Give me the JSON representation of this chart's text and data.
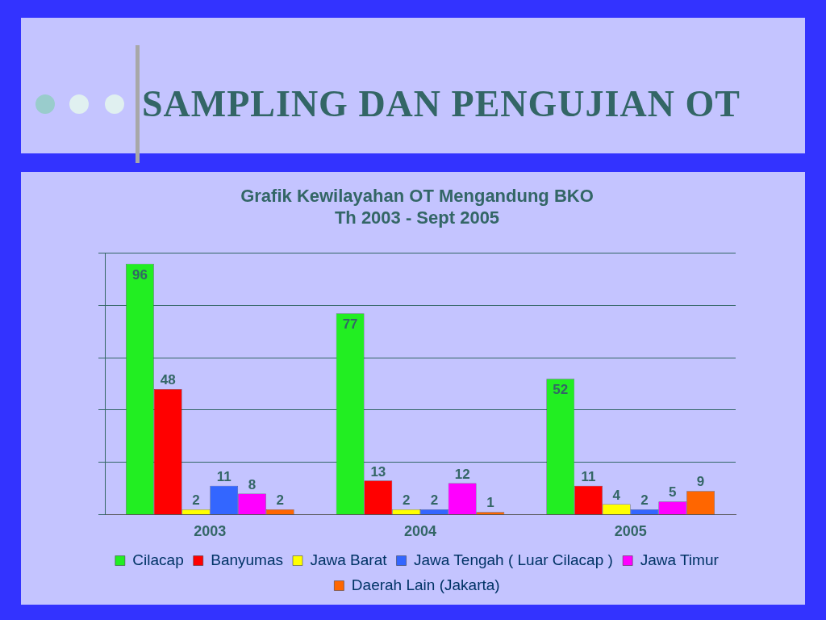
{
  "chart_data": {
    "type": "bar",
    "title": "SAMPLING DAN PENGUJIAN OT",
    "subtitle": "Grafik Kewilayahan OT Mengandung BKO\nTh 2003 - Sept 2005",
    "categories": [
      "2003",
      "2004",
      "2005"
    ],
    "series": [
      {
        "name": "Cilacap",
        "color": "#22ee22",
        "values": [
          96,
          77,
          52
        ]
      },
      {
        "name": "Banyumas",
        "color": "#ff0000",
        "values": [
          48,
          13,
          11
        ]
      },
      {
        "name": "Jawa Barat",
        "color": "#ffff00",
        "values": [
          2,
          2,
          4
        ]
      },
      {
        "name": "Jawa Tengah ( Luar Cilacap )",
        "color": "#3366ff",
        "values": [
          11,
          2,
          2
        ]
      },
      {
        "name": "Jawa Timur",
        "color": "#ff00ff",
        "values": [
          8,
          12,
          5
        ]
      },
      {
        "name": "Daerah Lain (Jakarta)",
        "color": "#ff6600",
        "values": [
          2,
          1,
          9
        ]
      }
    ],
    "ylim": [
      0,
      100
    ],
    "yticks": [
      {
        "value": 0,
        "label": null
      },
      {
        "value": 20,
        "label": null
      },
      {
        "value": 40,
        "label": null
      },
      {
        "value": 60,
        "label": null
      },
      {
        "value": 80,
        "label": null
      },
      {
        "value": 100,
        "label": null
      }
    ],
    "grid": "y",
    "legend": "bottom",
    "tick_labels": "x",
    "data_labels": true
  }
}
